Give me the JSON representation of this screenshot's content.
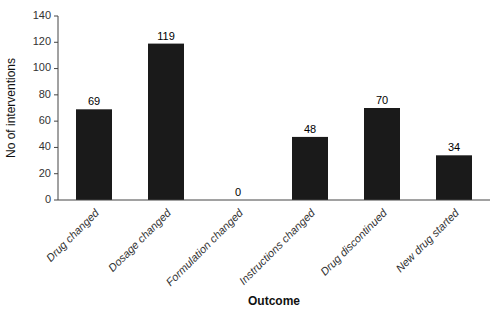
{
  "chart_data": {
    "type": "bar",
    "categories": [
      "Drug changed",
      "Dosage changed",
      "Formulation changed",
      "Instructions changed",
      "Drug discontinued",
      "New drug started"
    ],
    "values": [
      69,
      119,
      0,
      48,
      70,
      34
    ],
    "color": "#1a1a1a",
    "xlabel": "Outcome",
    "ylabel": "No of interventions",
    "ylim": [
      0,
      140
    ],
    "yticks": [
      0,
      20,
      40,
      60,
      80,
      100,
      120,
      140
    ],
    "grid": false,
    "data_labels": true
  }
}
